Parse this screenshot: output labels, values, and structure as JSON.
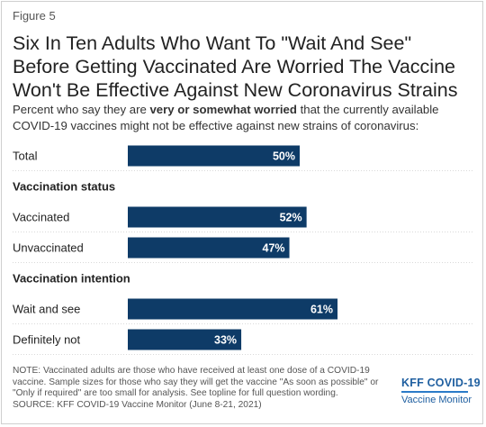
{
  "figure_label": "Figure 5",
  "title_lines": [
    "Six In Ten Adults Who Want To \"Wait And See\"",
    "Before Getting Vaccinated Are Worried The Vaccine",
    "Won't Be Effective Against New Coronavirus Strains"
  ],
  "subtitle": {
    "before": "Percent who say they are ",
    "bold": "very or somewhat worried",
    "after": " that the currently available COVID-19 vaccines might not be effective against new strains of coronavirus:"
  },
  "chart_data": {
    "type": "bar",
    "orientation": "horizontal",
    "xlim": [
      0,
      100
    ],
    "grid": false,
    "bar_color": "#0e3b67",
    "label_color": "#ffffff",
    "rows": [
      {
        "kind": "bar",
        "label": "Total",
        "value": 50,
        "value_label": "50%"
      },
      {
        "kind": "header",
        "label": "Vaccination status"
      },
      {
        "kind": "bar",
        "label": "Vaccinated",
        "value": 52,
        "value_label": "52%"
      },
      {
        "kind": "bar",
        "label": "Unvaccinated",
        "value": 47,
        "value_label": "47%"
      },
      {
        "kind": "header",
        "label": "Vaccination intention"
      },
      {
        "kind": "bar",
        "label": "Wait and see",
        "value": 61,
        "value_label": "61%"
      },
      {
        "kind": "bar",
        "label": "Definitely not",
        "value": 33,
        "value_label": "33%"
      }
    ]
  },
  "note_lines": [
    "NOTE: Vaccinated adults are those who have received at least one dose of a COVID-19",
    "vaccine. Sample sizes for those who say they will get the vaccine \"As soon as possible\" or",
    "\"Only if required\" are too small for analysis. See topline for full question wording.",
    "SOURCE: KFF COVID-19 Vaccine Monitor (June 8-21, 2021)"
  ],
  "logo": {
    "top": "KFF COVID-19",
    "bottom": "Vaccine Monitor"
  },
  "colors": {
    "bar": "#0e3b67",
    "logo": "#1f5fa0",
    "separator": "#d9d9d9"
  }
}
